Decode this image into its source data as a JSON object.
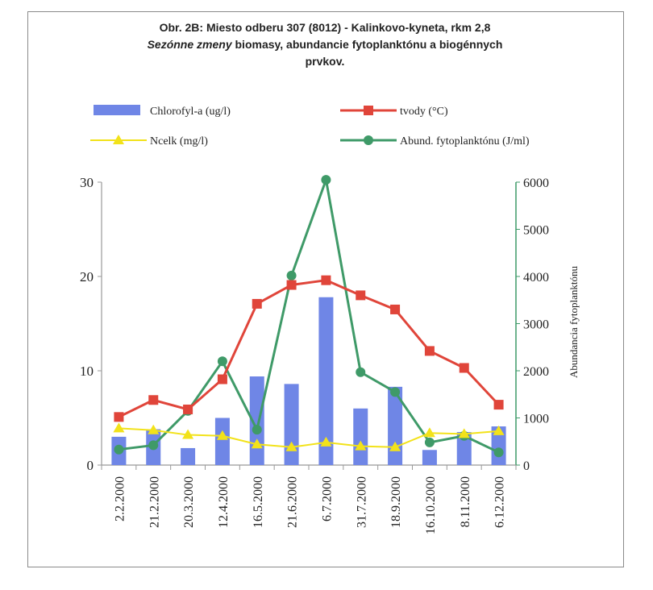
{
  "title": "Obr. 2B: Miesto odberu 307 (8012) - Kalinkovo-kyneta, rkm 2,8",
  "subtitle_italic": "Sezónne zmeny",
  "subtitle_rest": "biomasy, abundancie fytoplanktónu a biogénnych",
  "subtitle_line3": "prvkov.",
  "colors": {
    "chlorophyll": "#6f86e6",
    "temperature": "#e0453a",
    "nitrogen": "#f2e21a",
    "abundance": "#3f9a68"
  },
  "chart_data": {
    "type": "bar",
    "categories": [
      "2.2.2000",
      "21.2.2000",
      "20.3.2000",
      "12.4.2000",
      "16.5.2000",
      "21.6.2000",
      "6.7.2000",
      "31.7.2000",
      "18.9.2000",
      "16.10.2000",
      "8.11.2000",
      "6.12.2000"
    ],
    "series": [
      {
        "name": "Chlorofyl-a (ug/l)",
        "type": "bar",
        "axis": "left",
        "values": [
          3.0,
          3.8,
          1.8,
          5.0,
          9.4,
          8.6,
          17.8,
          6.0,
          8.3,
          1.6,
          3.5,
          4.1
        ]
      },
      {
        "name": "tvody (°C)",
        "type": "line",
        "marker": "square",
        "axis": "left",
        "values": [
          5.1,
          6.9,
          5.9,
          9.1,
          17.1,
          19.1,
          19.6,
          18.0,
          16.5,
          12.1,
          10.3,
          6.4
        ]
      },
      {
        "name": "Ncelk (mg/l)",
        "type": "line",
        "marker": "triangle",
        "axis": "left",
        "values": [
          3.9,
          3.7,
          3.2,
          3.1,
          2.2,
          1.9,
          2.4,
          2.0,
          1.9,
          3.4,
          3.3,
          3.6
        ]
      },
      {
        "name": "Abund. fytoplanktónu (J/ml)",
        "type": "line",
        "marker": "circle",
        "axis": "right",
        "values": [
          330,
          420,
          1150,
          2200,
          750,
          4020,
          6050,
          1970,
          1550,
          480,
          620,
          270
        ]
      }
    ],
    "y_left": {
      "lim": [
        0,
        30
      ],
      "ticks": [
        "0",
        "10",
        "20",
        "30"
      ]
    },
    "y_right": {
      "lim": [
        0,
        6000
      ],
      "ticks": [
        "0",
        "1000",
        "2000",
        "3000",
        "4000",
        "5000",
        "6000"
      ],
      "label": "Abundancia fytoplanktónu"
    },
    "legend_placement": "top"
  }
}
